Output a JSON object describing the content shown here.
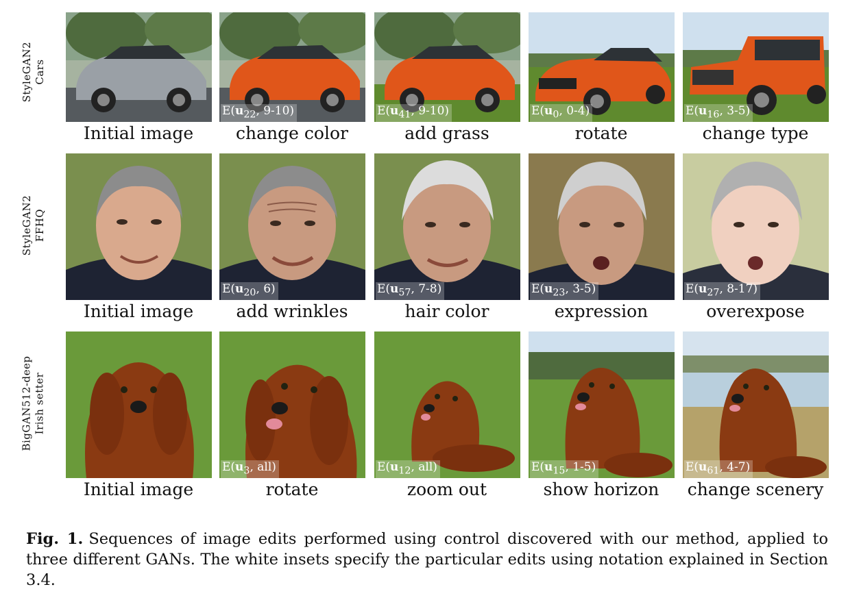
{
  "rows": [
    {
      "label_line1": "StyleGAN2",
      "label_line2": "Cars",
      "panels": [
        {
          "caption": "Initial image",
          "inset": ""
        },
        {
          "caption": "change color",
          "inset_prefix": "E(",
          "inset_vec": "u",
          "inset_sub": "22",
          "inset_suffix": ", 9-10)"
        },
        {
          "caption": "add grass",
          "inset_prefix": "E(",
          "inset_vec": "u",
          "inset_sub": "41",
          "inset_suffix": ", 9-10)"
        },
        {
          "caption": "rotate",
          "inset_prefix": "E(",
          "inset_vec": "u",
          "inset_sub": "0",
          "inset_suffix": ", 0-4)"
        },
        {
          "caption": "change type",
          "inset_prefix": "E(",
          "inset_vec": "u",
          "inset_sub": "16",
          "inset_suffix": ", 3-5)"
        }
      ]
    },
    {
      "label_line1": "StyleGAN2",
      "label_line2": "FFHQ",
      "panels": [
        {
          "caption": "Initial image",
          "inset": ""
        },
        {
          "caption": "add wrinkles",
          "inset_prefix": "E(",
          "inset_vec": "u",
          "inset_sub": "20",
          "inset_suffix": ", 6)"
        },
        {
          "caption": "hair color",
          "inset_prefix": "E(",
          "inset_vec": "u",
          "inset_sub": "57",
          "inset_suffix": ", 7-8)"
        },
        {
          "caption": "expression",
          "inset_prefix": "E(",
          "inset_vec": "u",
          "inset_sub": "23",
          "inset_suffix": ", 3-5)"
        },
        {
          "caption": "overexpose",
          "inset_prefix": "E(",
          "inset_vec": "u",
          "inset_sub": "27",
          "inset_suffix": ", 8-17)"
        }
      ]
    },
    {
      "label_line1": "BigGAN512-deep",
      "label_line2": "Irish setter",
      "panels": [
        {
          "caption": "Initial image",
          "inset": ""
        },
        {
          "caption": "rotate",
          "inset_prefix": "E(",
          "inset_vec": "u",
          "inset_sub": "3",
          "inset_suffix": ", all)"
        },
        {
          "caption": "zoom out",
          "inset_prefix": "E(",
          "inset_vec": "u",
          "inset_sub": "12",
          "inset_suffix": ", all)"
        },
        {
          "caption": "show horizon",
          "inset_prefix": "E(",
          "inset_vec": "u",
          "inset_sub": "15",
          "inset_suffix": ", 1-5)"
        },
        {
          "caption": "change scenery",
          "inset_prefix": "E(",
          "inset_vec": "u",
          "inset_sub": "61",
          "inset_suffix": ", 4-7)"
        }
      ]
    }
  ],
  "figure_caption": {
    "number": "Fig. 1.",
    "text": "Sequences of image edits performed using control discovered with our method, applied to three different GANs. The white insets specify the particular edits using notation explained in Section 3.4."
  },
  "colors": {
    "car_silver": "#9aa0a6",
    "car_orange": "#e0561a",
    "grass": "#5f8a2e",
    "sky": "#cfe0ee",
    "skin": "#d9a98d",
    "hair_gray": "#8c8c8c",
    "hair_white": "#dcdcdc",
    "suit": "#1e2333",
    "dog": "#8a3a12",
    "field": "#6a9a3a"
  }
}
